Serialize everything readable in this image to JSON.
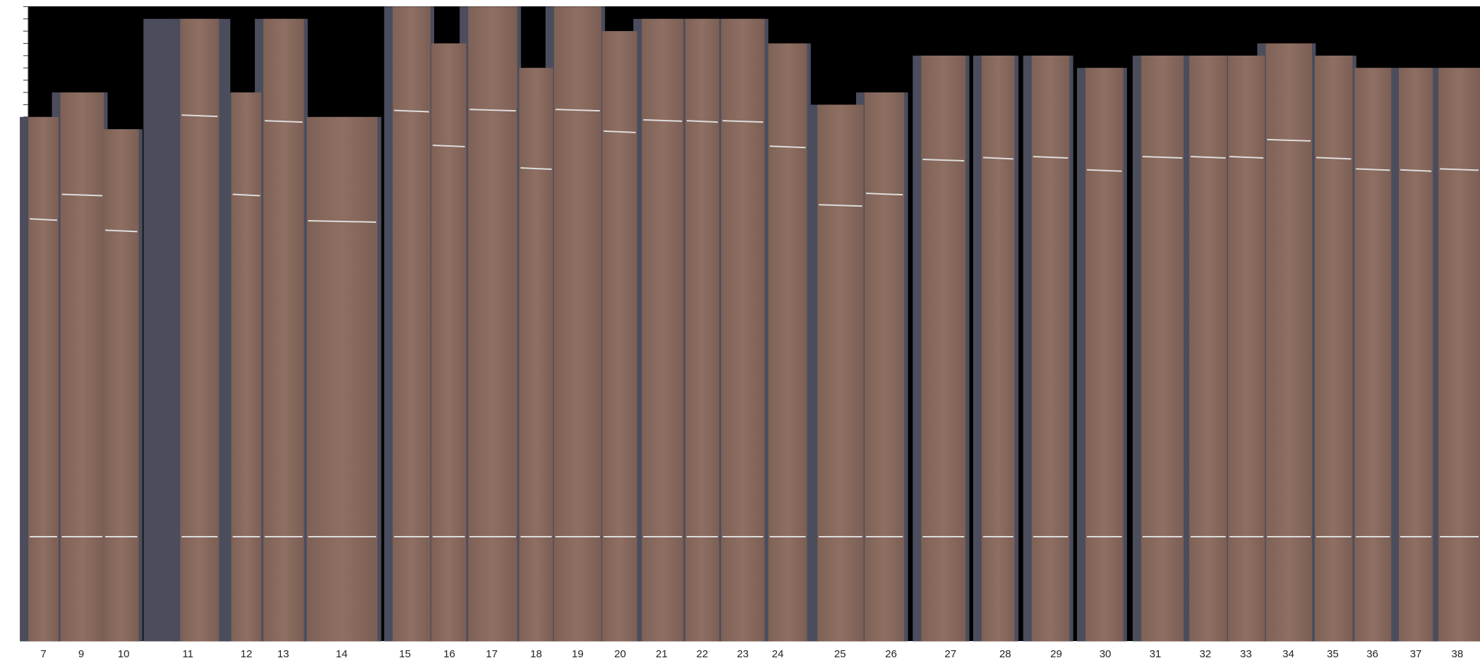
{
  "strips": [
    {
      "label": "7"
    },
    {
      "label": "9"
    },
    {
      "label": "10"
    },
    {
      "label": "11"
    },
    {
      "label": "12"
    },
    {
      "label": "13"
    },
    {
      "label": "14"
    },
    {
      "label": "15"
    },
    {
      "label": "16"
    },
    {
      "label": "17"
    },
    {
      "label": "18"
    },
    {
      "label": "19"
    },
    {
      "label": "20"
    },
    {
      "label": "21"
    },
    {
      "label": "22"
    },
    {
      "label": "23"
    },
    {
      "label": "24"
    },
    {
      "label": "25"
    },
    {
      "label": "26"
    },
    {
      "label": "27"
    },
    {
      "label": "28"
    },
    {
      "label": "29"
    },
    {
      "label": "30"
    },
    {
      "label": "31"
    },
    {
      "label": "32"
    },
    {
      "label": "33"
    },
    {
      "label": "34"
    },
    {
      "label": "35"
    },
    {
      "label": "36"
    },
    {
      "label": "37"
    },
    {
      "label": "38"
    }
  ]
}
